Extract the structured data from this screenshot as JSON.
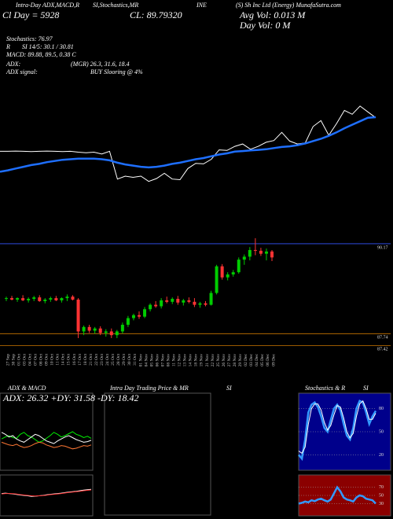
{
  "header": {
    "l1": "Intra-Day ADX,MACD,R",
    "l2": "SI,Stochastics,MR",
    "ticker": "INE",
    "site": "(S) Sh Inc Ltd (Energy) MunafaSutra.com",
    "cl_day": "Cl Day = 5928",
    "close": "CL: 89.79320",
    "avg_vol": "Avg Vol: 0.013 M",
    "day_vol": "Day Vol: 0 M",
    "stoch": "Stochastics: 76.97",
    "r": "R",
    "rsi": "SI 14/5: 30.1 / 30.81",
    "macd": "MACD: 89.88, 89.5, 0.38 C",
    "adx": "ADX:",
    "adx_vals": "(MGR) 26.3, 31.6, 18.4",
    "adx_signal": "ADX signal:",
    "signal": "BUY Slooring @ 4%",
    "intraday": "Intra Day Trading Price & MR",
    "intraday_si": "SI"
  },
  "chart_data": [
    {
      "type": "line",
      "series": [
        {
          "color": "#ffffff",
          "values": [
            88.55,
            88.55,
            88.56,
            88.55,
            88.54,
            88.55,
            88.56,
            88.55,
            88.54,
            88.55,
            88.52,
            88.5,
            88.52,
            88.46,
            88.55,
            87.6,
            87.7,
            87.66,
            87.7,
            87.52,
            87.62,
            87.8,
            87.6,
            87.58,
            87.96,
            88.14,
            88.12,
            88.28,
            88.6,
            88.58,
            88.72,
            88.8,
            88.62,
            88.72,
            88.86,
            88.92,
            89.2,
            88.9,
            88.8,
            88.84,
            89.4,
            89.6,
            89.1,
            89.5,
            89.95,
            89.82,
            90.1,
            89.9,
            89.7
          ]
        },
        {
          "color": "#1e6fff",
          "values": [
            87.85,
            87.9,
            87.96,
            88.02,
            88.08,
            88.12,
            88.18,
            88.22,
            88.26,
            88.28,
            88.3,
            88.3,
            88.3,
            88.28,
            88.24,
            88.16,
            88.1,
            88.06,
            88.02,
            88.0,
            88.02,
            88.06,
            88.12,
            88.16,
            88.22,
            88.28,
            88.32,
            88.38,
            88.44,
            88.48,
            88.54,
            88.56,
            88.58,
            88.6,
            88.62,
            88.66,
            88.7,
            88.72,
            88.76,
            88.82,
            88.9,
            88.98,
            89.08,
            89.2,
            89.34,
            89.46,
            89.58,
            89.7,
            89.72
          ]
        }
      ],
      "ylim": [
        87.0,
        90.5
      ]
    },
    {
      "type": "candlestick",
      "categories": [
        "27 Sep",
        "30 Sep",
        "01 Oct",
        "03 Oct",
        "04 Oct",
        "07 Oct",
        "08 Oct",
        "09 Oct",
        "10 Oct",
        "11 Oct",
        "14 Oct",
        "15 Oct",
        "16 Oct",
        "17 Oct",
        "18 Oct",
        "21 Oct",
        "22 Oct",
        "23 Oct",
        "24 Oct",
        "25 Oct",
        "28 Oct",
        "29 Oct",
        "30 Oct",
        "31 Oct",
        "01 Nov",
        "04 Nov",
        "05 Nov",
        "06 Nov",
        "07 Nov",
        "08 Nov",
        "11 Nov",
        "12 Nov",
        "13 Nov",
        "14 Nov",
        "18 Nov",
        "19 Nov",
        "21 Nov",
        "22 Nov",
        "25 Nov",
        "26 Nov",
        "27 Nov",
        "28 Nov",
        "29 Nov",
        "02 Dec",
        "03 Dec",
        "04 Dec",
        "05 Dec",
        "06 Dec",
        "09 Dec"
      ],
      "open": [
        88.68,
        88.7,
        88.66,
        88.7,
        88.64,
        88.68,
        88.72,
        88.62,
        88.66,
        88.7,
        88.64,
        88.7,
        88.74,
        88.66,
        87.8,
        87.92,
        87.82,
        87.88,
        87.76,
        87.8,
        87.7,
        87.8,
        87.98,
        88.16,
        88.24,
        88.2,
        88.4,
        88.52,
        88.48,
        88.64,
        88.6,
        88.68,
        88.58,
        88.64,
        88.6,
        88.52,
        88.56,
        88.52,
        88.84,
        89.56,
        89.26,
        89.34,
        89.4,
        89.74,
        89.82,
        90.0,
        89.98,
        89.9,
        89.96
      ],
      "high": [
        88.74,
        88.76,
        88.72,
        88.78,
        88.72,
        88.76,
        88.78,
        88.7,
        88.74,
        88.76,
        88.72,
        88.8,
        88.78,
        88.7,
        87.96,
        87.98,
        87.92,
        87.94,
        87.86,
        87.88,
        87.84,
        88.04,
        88.22,
        88.28,
        88.34,
        88.46,
        88.56,
        88.62,
        88.7,
        88.74,
        88.72,
        88.76,
        88.68,
        88.72,
        88.7,
        88.6,
        88.62,
        88.9,
        89.6,
        89.62,
        89.4,
        89.46,
        89.8,
        89.88,
        90.08,
        90.32,
        90.06,
        90.04,
        90.0
      ],
      "low": [
        88.62,
        88.64,
        88.6,
        88.62,
        88.58,
        88.62,
        88.6,
        88.56,
        88.6,
        88.62,
        88.58,
        88.62,
        88.64,
        87.62,
        87.7,
        87.76,
        87.74,
        87.7,
        87.66,
        87.62,
        87.62,
        87.74,
        87.92,
        88.1,
        88.14,
        88.16,
        88.34,
        88.44,
        88.42,
        88.56,
        88.54,
        88.52,
        88.5,
        88.56,
        88.46,
        88.44,
        88.48,
        88.5,
        88.8,
        89.2,
        89.18,
        89.28,
        89.36,
        89.6,
        89.72,
        89.86,
        89.84,
        89.72,
        89.7
      ],
      "close": [
        88.7,
        88.66,
        88.7,
        88.64,
        88.68,
        88.72,
        88.62,
        88.66,
        88.7,
        88.64,
        88.7,
        88.74,
        88.66,
        87.8,
        87.92,
        87.82,
        87.88,
        87.76,
        87.8,
        87.7,
        87.8,
        87.98,
        88.16,
        88.24,
        88.2,
        88.4,
        88.52,
        88.48,
        88.64,
        88.6,
        88.68,
        88.58,
        88.64,
        88.6,
        88.52,
        88.56,
        88.52,
        88.84,
        89.56,
        89.26,
        89.34,
        89.4,
        89.74,
        89.82,
        90.0,
        89.98,
        89.9,
        89.96,
        89.8
      ],
      "up_color": "#00cc00",
      "down_color": "#ff3333",
      "ylim": [
        87.3,
        90.7
      ],
      "yticks": [
        {
          "value": 90.17,
          "label": "90.17"
        },
        {
          "value": 87.74,
          "label": "87.74"
        },
        {
          "value": 87.42,
          "label": "87.42"
        }
      ],
      "tick_colors": [
        "#3355ff",
        "#cc7700",
        "#cc7700"
      ]
    },
    {
      "type": "line",
      "title": "ADX & MACD",
      "annotation": "ADX: 26.32 +DY: 31.58 -DY: 18.42",
      "ylim": [
        0,
        100
      ],
      "series": [
        {
          "color": "#00ee00",
          "values": [
            45,
            48,
            50,
            47,
            46,
            52,
            55,
            50,
            48,
            44,
            40,
            42,
            46,
            50,
            55,
            52,
            48,
            50,
            53,
            56,
            52,
            50,
            47,
            49,
            46
          ]
        },
        {
          "color": "#ff7733",
          "values": [
            40,
            38,
            36,
            35,
            37,
            34,
            32,
            33,
            35,
            38,
            40,
            39,
            36,
            34,
            32,
            33,
            35,
            34,
            32,
            30,
            31,
            33,
            35,
            34,
            36
          ]
        },
        {
          "color": "#ffffff",
          "values": [
            55,
            52,
            48,
            50,
            45,
            42,
            40,
            44,
            48,
            52,
            50,
            46,
            42,
            40,
            38,
            42,
            45,
            48,
            50,
            47,
            44,
            42,
            40,
            41,
            43
          ]
        }
      ]
    },
    {
      "type": "line",
      "ylim": [
        -1,
        1
      ],
      "series": [
        {
          "color": "#ffffff",
          "values": [
            0.1,
            0.12,
            0.1,
            0.08,
            0.05,
            0.02,
            0,
            -0.02,
            -0.05,
            -0.04,
            -0.02,
            0,
            0.03,
            0.06,
            0.08,
            0.1,
            0.12,
            0.15,
            0.18,
            0.2,
            0.22,
            0.25,
            0.28,
            0.3,
            0.32
          ]
        },
        {
          "color": "#ff3333",
          "values": [
            0.08,
            0.1,
            0.1,
            0.09,
            0.07,
            0.04,
            0.02,
            0,
            -0.02,
            -0.03,
            -0.02,
            -0.01,
            0.01,
            0.04,
            0.06,
            0.08,
            0.1,
            0.13,
            0.16,
            0.18,
            0.2,
            0.22,
            0.25,
            0.27,
            0.29
          ]
        }
      ]
    },
    {
      "type": "line",
      "title": "Stochastics & R",
      "subtitle": "SI",
      "background": "#00008b",
      "ylim": [
        0,
        100
      ],
      "yticks": [
        20,
        50,
        80
      ],
      "series": [
        {
          "color": "#3399ff",
          "values": [
            20,
            15,
            40,
            75,
            85,
            88,
            82,
            70,
            55,
            50,
            65,
            80,
            85,
            78,
            60,
            45,
            40,
            55,
            80,
            90,
            88,
            75,
            60,
            70,
            77
          ]
        },
        {
          "color": "#ffffff",
          "values": [
            25,
            22,
            30,
            60,
            80,
            86,
            86,
            78,
            62,
            52,
            58,
            72,
            84,
            82,
            68,
            50,
            42,
            48,
            70,
            86,
            90,
            80,
            66,
            66,
            74
          ]
        }
      ]
    },
    {
      "type": "line",
      "background": "#8b0000",
      "ylim": [
        0,
        100
      ],
      "yticks": [
        30,
        50,
        70
      ],
      "series": [
        {
          "color": "#3399ff",
          "values": [
            30,
            32,
            35,
            33,
            38,
            36,
            40,
            42,
            38,
            35,
            40,
            55,
            70,
            60,
            45,
            40,
            38,
            35,
            45,
            50,
            48,
            42,
            40,
            38,
            30
          ]
        }
      ]
    }
  ]
}
